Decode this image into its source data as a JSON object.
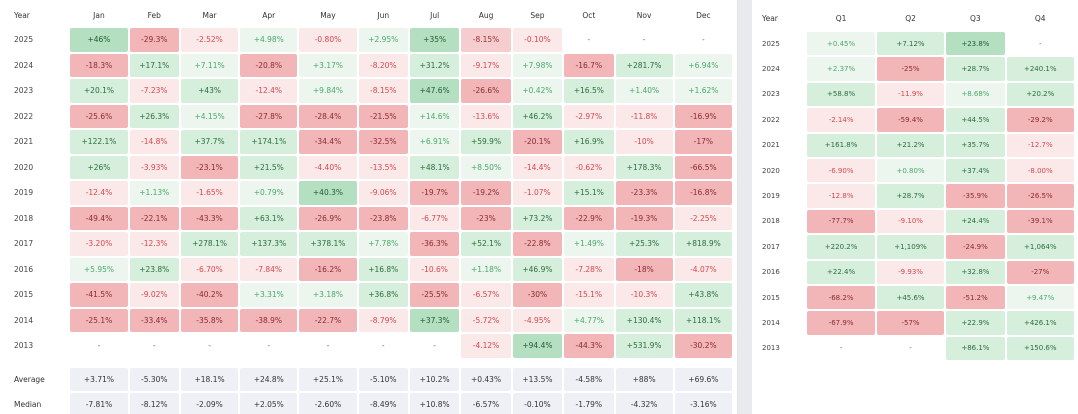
{
  "monthly": {
    "headers": [
      "Year",
      "Jan",
      "Feb",
      "Mar",
      "Apr",
      "May",
      "Jun",
      "Jul",
      "Aug",
      "Sep",
      "Oct",
      "Nov",
      "Dec"
    ],
    "rows": [
      {
        "year": "2025",
        "cells": [
          [
            "+46%",
            "mg"
          ],
          [
            "-29.3%",
            "lr"
          ],
          [
            "-2.52%",
            "pr"
          ],
          [
            "+4.98%",
            "pg"
          ],
          [
            "-0.80%",
            "pr"
          ],
          [
            "+2.95%",
            "pg"
          ],
          [
            "+35%",
            "mg"
          ],
          [
            "-8.15%",
            "mr"
          ],
          [
            "-0.10%",
            "pr"
          ],
          [
            "-",
            "nn"
          ],
          [
            "-",
            "nn"
          ],
          [
            "-",
            "nn"
          ]
        ]
      },
      {
        "year": "2024",
        "cells": [
          [
            "-18.3%",
            "lr"
          ],
          [
            "+17.1%",
            "lg"
          ],
          [
            "+7.11%",
            "pg"
          ],
          [
            "-20.8%",
            "lr"
          ],
          [
            "+3.17%",
            "pg"
          ],
          [
            "-8.20%",
            "pr"
          ],
          [
            "+31.2%",
            "lg"
          ],
          [
            "-9.17%",
            "pr"
          ],
          [
            "+7.98%",
            "pg"
          ],
          [
            "-16.7%",
            "lr"
          ],
          [
            "+281.7%",
            "lg"
          ],
          [
            "+6.94%",
            "pg"
          ]
        ]
      },
      {
        "year": "2023",
        "cells": [
          [
            "+20.1%",
            "lg"
          ],
          [
            "-7.23%",
            "pr"
          ],
          [
            "+43%",
            "lg"
          ],
          [
            "-12.4%",
            "pr"
          ],
          [
            "+9.84%",
            "pg"
          ],
          [
            "-8.15%",
            "pr"
          ],
          [
            "+47.6%",
            "mg"
          ],
          [
            "-26.6%",
            "lr"
          ],
          [
            "+0.42%",
            "pg"
          ],
          [
            "+16.5%",
            "lg"
          ],
          [
            "+1.40%",
            "pg"
          ],
          [
            "+1.62%",
            "pg"
          ]
        ]
      },
      {
        "year": "2022",
        "cells": [
          [
            "-25.6%",
            "lr"
          ],
          [
            "+26.3%",
            "lg"
          ],
          [
            "+4.15%",
            "pg"
          ],
          [
            "-27.8%",
            "lr"
          ],
          [
            "-28.4%",
            "lr"
          ],
          [
            "-21.5%",
            "lr"
          ],
          [
            "+14.6%",
            "pg"
          ],
          [
            "-13.6%",
            "pr"
          ],
          [
            "+46.2%",
            "lg"
          ],
          [
            "-2.97%",
            "pr"
          ],
          [
            "-11.8%",
            "pr"
          ],
          [
            "-16.9%",
            "lr"
          ]
        ]
      },
      {
        "year": "2021",
        "cells": [
          [
            "+122.1%",
            "lg"
          ],
          [
            "-14.8%",
            "pr"
          ],
          [
            "+37.7%",
            "lg"
          ],
          [
            "+174.1%",
            "lg"
          ],
          [
            "-34.4%",
            "lr"
          ],
          [
            "-32.5%",
            "lr"
          ],
          [
            "+6.91%",
            "pg"
          ],
          [
            "+59.9%",
            "lg"
          ],
          [
            "-20.1%",
            "lr"
          ],
          [
            "+16.9%",
            "lg"
          ],
          [
            "-10%",
            "pr"
          ],
          [
            "-17%",
            "lr"
          ]
        ]
      },
      {
        "year": "2020",
        "cells": [
          [
            "+26%",
            "lg"
          ],
          [
            "-3.93%",
            "pr"
          ],
          [
            "-23.1%",
            "lr"
          ],
          [
            "+21.5%",
            "lg"
          ],
          [
            "-4.40%",
            "pr"
          ],
          [
            "-13.5%",
            "pr"
          ],
          [
            "+48.1%",
            "lg"
          ],
          [
            "+8.50%",
            "pg"
          ],
          [
            "-14.4%",
            "pr"
          ],
          [
            "-0.62%",
            "pr"
          ],
          [
            "+178.3%",
            "lg"
          ],
          [
            "-66.5%",
            "lr"
          ]
        ]
      },
      {
        "year": "2019",
        "cells": [
          [
            "-12.4%",
            "pr"
          ],
          [
            "+1.13%",
            "pg"
          ],
          [
            "-1.65%",
            "pr"
          ],
          [
            "+0.79%",
            "pg"
          ],
          [
            "+40.3%",
            "mg"
          ],
          [
            "-9.06%",
            "pr"
          ],
          [
            "-19.7%",
            "lr"
          ],
          [
            "-19.2%",
            "lr"
          ],
          [
            "-1.07%",
            "pr"
          ],
          [
            "+15.1%",
            "lg"
          ],
          [
            "-23.3%",
            "lr"
          ],
          [
            "-16.8%",
            "lr"
          ]
        ]
      },
      {
        "year": "2018",
        "cells": [
          [
            "-49.4%",
            "lr"
          ],
          [
            "-22.1%",
            "lr"
          ],
          [
            "-43.3%",
            "lr"
          ],
          [
            "+63.1%",
            "lg"
          ],
          [
            "-26.9%",
            "lr"
          ],
          [
            "-23.8%",
            "lr"
          ],
          [
            "-6.77%",
            "pr"
          ],
          [
            "-23%",
            "lr"
          ],
          [
            "+73.2%",
            "lg"
          ],
          [
            "-22.9%",
            "lr"
          ],
          [
            "-19.3%",
            "lr"
          ],
          [
            "-2.25%",
            "pr"
          ]
        ]
      },
      {
        "year": "2017",
        "cells": [
          [
            "-3.20%",
            "pr"
          ],
          [
            "-12.3%",
            "pr"
          ],
          [
            "+278.1%",
            "lg"
          ],
          [
            "+137.3%",
            "lg"
          ],
          [
            "+378.1%",
            "lg"
          ],
          [
            "+7.78%",
            "pg"
          ],
          [
            "-36.3%",
            "lr"
          ],
          [
            "+52.1%",
            "lg"
          ],
          [
            "-22.8%",
            "lr"
          ],
          [
            "+1.49%",
            "pg"
          ],
          [
            "+25.3%",
            "lg"
          ],
          [
            "+818.9%",
            "lg"
          ]
        ]
      },
      {
        "year": "2016",
        "cells": [
          [
            "+5.95%",
            "pg"
          ],
          [
            "+23.8%",
            "lg"
          ],
          [
            "-6.70%",
            "pr"
          ],
          [
            "-7.84%",
            "pr"
          ],
          [
            "-16.2%",
            "lr"
          ],
          [
            "+16.8%",
            "lg"
          ],
          [
            "-10.6%",
            "pr"
          ],
          [
            "+1.18%",
            "pg"
          ],
          [
            "+46.9%",
            "lg"
          ],
          [
            "-7.28%",
            "pr"
          ],
          [
            "-18%",
            "lr"
          ],
          [
            "-4.07%",
            "pr"
          ]
        ]
      },
      {
        "year": "2015",
        "cells": [
          [
            "-41.5%",
            "lr"
          ],
          [
            "-9.02%",
            "pr"
          ],
          [
            "-40.2%",
            "lr"
          ],
          [
            "+3.31%",
            "pg"
          ],
          [
            "+3.18%",
            "pg"
          ],
          [
            "+36.8%",
            "lg"
          ],
          [
            "-25.5%",
            "lr"
          ],
          [
            "-6.57%",
            "pr"
          ],
          [
            "-30%",
            "lr"
          ],
          [
            "-15.1%",
            "pr"
          ],
          [
            "-10.3%",
            "pr"
          ],
          [
            "+43.8%",
            "lg"
          ]
        ]
      },
      {
        "year": "2014",
        "cells": [
          [
            "-25.1%",
            "lr"
          ],
          [
            "-33.4%",
            "lr"
          ],
          [
            "-35.8%",
            "lr"
          ],
          [
            "-38.9%",
            "lr"
          ],
          [
            "-22.7%",
            "lr"
          ],
          [
            "-8.79%",
            "pr"
          ],
          [
            "+37.3%",
            "mg"
          ],
          [
            "-5.72%",
            "pr"
          ],
          [
            "-4.95%",
            "pr"
          ],
          [
            "+4.77%",
            "pg"
          ],
          [
            "+130.4%",
            "lg"
          ],
          [
            "+118.1%",
            "lg"
          ]
        ]
      },
      {
        "year": "2013",
        "cells": [
          [
            "-",
            "nn"
          ],
          [
            "-",
            "nn"
          ],
          [
            "-",
            "nn"
          ],
          [
            "-",
            "nn"
          ],
          [
            "-",
            "nn"
          ],
          [
            "-",
            "nn"
          ],
          [
            "-",
            "nn"
          ],
          [
            "-4.12%",
            "pr"
          ],
          [
            "+94.4%",
            "mg"
          ],
          [
            "-44.3%",
            "lr"
          ],
          [
            "+531.9%",
            "lg"
          ],
          [
            "-30.2%",
            "lr"
          ]
        ]
      }
    ],
    "average": {
      "label": "Average",
      "values": [
        "+3.71%",
        "-5.30%",
        "+18.1%",
        "+24.8%",
        "+25.1%",
        "-5.10%",
        "+10.2%",
        "+0.43%",
        "+13.5%",
        "-4.58%",
        "+88%",
        "+69.6%"
      ]
    },
    "median": {
      "label": "Median",
      "values": [
        "-7.81%",
        "-8.12%",
        "-2.09%",
        "+2.05%",
        "-2.60%",
        "-8.49%",
        "+10.8%",
        "-6.57%",
        "-0.10%",
        "-1.79%",
        "-4.32%",
        "-3.16%"
      ]
    }
  },
  "quarterly": {
    "headers": [
      "Year",
      "Q1",
      "Q2",
      "Q3",
      "Q4"
    ],
    "rows": [
      {
        "year": "2025",
        "cells": [
          [
            "+0.45%",
            "pg"
          ],
          [
            "+7.12%",
            "lg"
          ],
          [
            "+23.8%",
            "mg"
          ],
          [
            "-",
            "nn"
          ]
        ]
      },
      {
        "year": "2024",
        "cells": [
          [
            "+2.37%",
            "pg"
          ],
          [
            "-25%",
            "lr"
          ],
          [
            "+28.7%",
            "lg"
          ],
          [
            "+240.1%",
            "lg"
          ]
        ]
      },
      {
        "year": "2023",
        "cells": [
          [
            "+58.8%",
            "lg"
          ],
          [
            "-11.9%",
            "pr"
          ],
          [
            "+8.68%",
            "pg"
          ],
          [
            "+20.2%",
            "lg"
          ]
        ]
      },
      {
        "year": "2022",
        "cells": [
          [
            "-2.14%",
            "pr"
          ],
          [
            "-59.4%",
            "lr"
          ],
          [
            "+44.5%",
            "lg"
          ],
          [
            "-29.2%",
            "lr"
          ]
        ]
      },
      {
        "year": "2021",
        "cells": [
          [
            "+161.8%",
            "lg"
          ],
          [
            "+21.2%",
            "lg"
          ],
          [
            "+35.7%",
            "lg"
          ],
          [
            "-12.7%",
            "pr"
          ]
        ]
      },
      {
        "year": "2020",
        "cells": [
          [
            "-6.90%",
            "pr"
          ],
          [
            "+0.80%",
            "pg"
          ],
          [
            "+37.4%",
            "lg"
          ],
          [
            "-8.00%",
            "pr"
          ]
        ]
      },
      {
        "year": "2019",
        "cells": [
          [
            "-12.8%",
            "pr"
          ],
          [
            "+28.7%",
            "lg"
          ],
          [
            "-35.9%",
            "lr"
          ],
          [
            "-26.5%",
            "lr"
          ]
        ]
      },
      {
        "year": "2018",
        "cells": [
          [
            "-77.7%",
            "lr"
          ],
          [
            "-9.10%",
            "pr"
          ],
          [
            "+24.4%",
            "lg"
          ],
          [
            "-39.1%",
            "lr"
          ]
        ]
      },
      {
        "year": "2017",
        "cells": [
          [
            "+220.2%",
            "lg"
          ],
          [
            "+1,109%",
            "lg"
          ],
          [
            "-24.9%",
            "lr"
          ],
          [
            "+1,064%",
            "lg"
          ]
        ]
      },
      {
        "year": "2016",
        "cells": [
          [
            "+22.4%",
            "lg"
          ],
          [
            "-9.93%",
            "pr"
          ],
          [
            "+32.8%",
            "lg"
          ],
          [
            "-27%",
            "lr"
          ]
        ]
      },
      {
        "year": "2015",
        "cells": [
          [
            "-68.2%",
            "lr"
          ],
          [
            "+45.6%",
            "lg"
          ],
          [
            "-51.2%",
            "lr"
          ],
          [
            "+9.47%",
            "pg"
          ]
        ]
      },
      {
        "year": "2014",
        "cells": [
          [
            "-67.9%",
            "lr"
          ],
          [
            "-57%",
            "lr"
          ],
          [
            "+22.9%",
            "lg"
          ],
          [
            "+426.1%",
            "lg"
          ]
        ]
      },
      {
        "year": "2013",
        "cells": [
          [
            "-",
            "nn"
          ],
          [
            "-",
            "nn"
          ],
          [
            "+86.1%",
            "lg"
          ],
          [
            "+150.6%",
            "lg"
          ]
        ]
      }
    ]
  }
}
